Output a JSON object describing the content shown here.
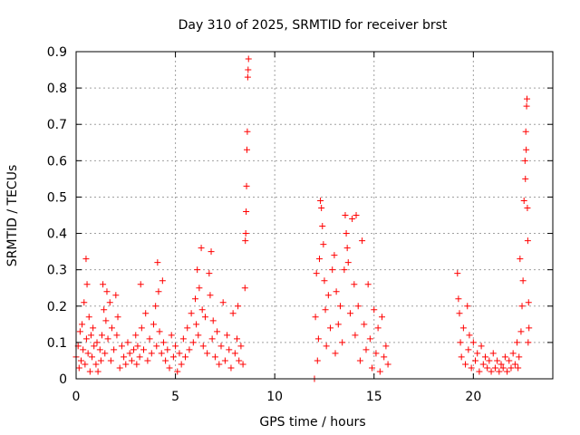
{
  "chart_data": {
    "type": "scatter",
    "title": "Day 310 of 2025, SRMTID for receiver brst",
    "xlabel": "GPS time / hours",
    "ylabel": "SRMTID / TECUs",
    "xlim": [
      0,
      24
    ],
    "ylim": [
      0,
      0.9
    ],
    "xticks": [
      "0",
      "5",
      "10",
      "15",
      "20"
    ],
    "yticks": [
      "0",
      "0.1",
      "0.2",
      "0.3",
      "0.4",
      "0.5",
      "0.6",
      "0.7",
      "0.8",
      "0.9"
    ],
    "grid": true,
    "marker": "+",
    "color": "#ff0000",
    "series": [
      {
        "name": "SRMTID",
        "points": [
          [
            0.0,
            0.06
          ],
          [
            0.1,
            0.09
          ],
          [
            0.15,
            0.03
          ],
          [
            0.2,
            0.13
          ],
          [
            0.25,
            0.05
          ],
          [
            0.3,
            0.15
          ],
          [
            0.35,
            0.08
          ],
          [
            0.4,
            0.21
          ],
          [
            0.45,
            0.04
          ],
          [
            0.5,
            0.33
          ],
          [
            0.52,
            0.11
          ],
          [
            0.55,
            0.26
          ],
          [
            0.6,
            0.07
          ],
          [
            0.65,
            0.17
          ],
          [
            0.7,
            0.02
          ],
          [
            0.75,
            0.12
          ],
          [
            0.8,
            0.06
          ],
          [
            0.85,
            0.14
          ],
          [
            0.9,
            0.09
          ],
          [
            1.0,
            0.04
          ],
          [
            1.05,
            0.1
          ],
          [
            1.1,
            0.02
          ],
          [
            1.2,
            0.08
          ],
          [
            1.25,
            0.05
          ],
          [
            1.3,
            0.12
          ],
          [
            1.35,
            0.26
          ],
          [
            1.4,
            0.19
          ],
          [
            1.45,
            0.07
          ],
          [
            1.5,
            0.16
          ],
          [
            1.55,
            0.24
          ],
          [
            1.6,
            0.11
          ],
          [
            1.7,
            0.21
          ],
          [
            1.75,
            0.05
          ],
          [
            1.8,
            0.14
          ],
          [
            1.9,
            0.08
          ],
          [
            2.0,
            0.23
          ],
          [
            2.05,
            0.12
          ],
          [
            2.1,
            0.17
          ],
          [
            2.2,
            0.03
          ],
          [
            2.3,
            0.09
          ],
          [
            2.4,
            0.06
          ],
          [
            2.5,
            0.04
          ],
          [
            2.6,
            0.1
          ],
          [
            2.7,
            0.07
          ],
          [
            2.8,
            0.05
          ],
          [
            2.9,
            0.08
          ],
          [
            3.0,
            0.12
          ],
          [
            3.05,
            0.04
          ],
          [
            3.1,
            0.09
          ],
          [
            3.2,
            0.06
          ],
          [
            3.25,
            0.26
          ],
          [
            3.3,
            0.14
          ],
          [
            3.4,
            0.08
          ],
          [
            3.5,
            0.18
          ],
          [
            3.6,
            0.05
          ],
          [
            3.7,
            0.11
          ],
          [
            3.8,
            0.07
          ],
          [
            3.9,
            0.15
          ],
          [
            4.0,
            0.2
          ],
          [
            4.05,
            0.09
          ],
          [
            4.1,
            0.32
          ],
          [
            4.15,
            0.24
          ],
          [
            4.2,
            0.13
          ],
          [
            4.3,
            0.07
          ],
          [
            4.35,
            0.27
          ],
          [
            4.4,
            0.1
          ],
          [
            4.5,
            0.05
          ],
          [
            4.6,
            0.08
          ],
          [
            4.7,
            0.03
          ],
          [
            4.8,
            0.12
          ],
          [
            4.9,
            0.06
          ],
          [
            5.0,
            0.09
          ],
          [
            5.1,
            0.02
          ],
          [
            5.2,
            0.07
          ],
          [
            5.3,
            0.04
          ],
          [
            5.4,
            0.11
          ],
          [
            5.5,
            0.06
          ],
          [
            5.6,
            0.14
          ],
          [
            5.7,
            0.08
          ],
          [
            5.8,
            0.18
          ],
          [
            5.9,
            0.1
          ],
          [
            6.0,
            0.22
          ],
          [
            6.05,
            0.15
          ],
          [
            6.1,
            0.3
          ],
          [
            6.15,
            0.12
          ],
          [
            6.2,
            0.25
          ],
          [
            6.3,
            0.36
          ],
          [
            6.35,
            0.19
          ],
          [
            6.4,
            0.09
          ],
          [
            6.5,
            0.17
          ],
          [
            6.6,
            0.07
          ],
          [
            6.7,
            0.29
          ],
          [
            6.75,
            0.23
          ],
          [
            6.8,
            0.35
          ],
          [
            6.85,
            0.11
          ],
          [
            6.9,
            0.16
          ],
          [
            7.0,
            0.06
          ],
          [
            7.1,
            0.13
          ],
          [
            7.2,
            0.04
          ],
          [
            7.3,
            0.09
          ],
          [
            7.4,
            0.21
          ],
          [
            7.5,
            0.05
          ],
          [
            7.6,
            0.12
          ],
          [
            7.7,
            0.08
          ],
          [
            7.8,
            0.03
          ],
          [
            7.9,
            0.18
          ],
          [
            8.0,
            0.07
          ],
          [
            8.1,
            0.11
          ],
          [
            8.15,
            0.2
          ],
          [
            8.2,
            0.05
          ],
          [
            8.3,
            0.09
          ],
          [
            8.4,
            0.04
          ],
          [
            8.5,
            0.25
          ],
          [
            8.52,
            0.38
          ],
          [
            8.54,
            0.4
          ],
          [
            8.56,
            0.46
          ],
          [
            8.58,
            0.53
          ],
          [
            8.6,
            0.63
          ],
          [
            8.62,
            0.68
          ],
          [
            8.64,
            0.83
          ],
          [
            8.66,
            0.85
          ],
          [
            8.68,
            0.88
          ],
          [
            12.0,
            0.0
          ],
          [
            12.05,
            0.17
          ],
          [
            12.1,
            0.29
          ],
          [
            12.15,
            0.05
          ],
          [
            12.2,
            0.11
          ],
          [
            12.25,
            0.33
          ],
          [
            12.3,
            0.49
          ],
          [
            12.35,
            0.47
          ],
          [
            12.4,
            0.42
          ],
          [
            12.45,
            0.37
          ],
          [
            12.5,
            0.27
          ],
          [
            12.55,
            0.19
          ],
          [
            12.6,
            0.09
          ],
          [
            12.7,
            0.23
          ],
          [
            12.8,
            0.14
          ],
          [
            12.9,
            0.3
          ],
          [
            13.0,
            0.34
          ],
          [
            13.05,
            0.07
          ],
          [
            13.1,
            0.24
          ],
          [
            13.2,
            0.15
          ],
          [
            13.3,
            0.2
          ],
          [
            13.4,
            0.1
          ],
          [
            13.5,
            0.3
          ],
          [
            13.55,
            0.45
          ],
          [
            13.6,
            0.4
          ],
          [
            13.65,
            0.36
          ],
          [
            13.7,
            0.32
          ],
          [
            13.8,
            0.18
          ],
          [
            13.9,
            0.44
          ],
          [
            14.0,
            0.26
          ],
          [
            14.05,
            0.12
          ],
          [
            14.1,
            0.45
          ],
          [
            14.2,
            0.2
          ],
          [
            14.3,
            0.05
          ],
          [
            14.4,
            0.38
          ],
          [
            14.5,
            0.15
          ],
          [
            14.6,
            0.08
          ],
          [
            14.7,
            0.26
          ],
          [
            14.8,
            0.11
          ],
          [
            14.9,
            0.03
          ],
          [
            15.0,
            0.19
          ],
          [
            15.1,
            0.07
          ],
          [
            15.2,
            0.14
          ],
          [
            15.3,
            0.02
          ],
          [
            15.4,
            0.17
          ],
          [
            15.5,
            0.06
          ],
          [
            15.6,
            0.09
          ],
          [
            15.7,
            0.04
          ],
          [
            19.2,
            0.29
          ],
          [
            19.25,
            0.22
          ],
          [
            19.3,
            0.18
          ],
          [
            19.35,
            0.1
          ],
          [
            19.4,
            0.06
          ],
          [
            19.5,
            0.14
          ],
          [
            19.6,
            0.04
          ],
          [
            19.7,
            0.2
          ],
          [
            19.75,
            0.08
          ],
          [
            19.8,
            0.12
          ],
          [
            19.9,
            0.03
          ],
          [
            20.0,
            0.1
          ],
          [
            20.1,
            0.05
          ],
          [
            20.2,
            0.07
          ],
          [
            20.3,
            0.02
          ],
          [
            20.4,
            0.09
          ],
          [
            20.5,
            0.04
          ],
          [
            20.6,
            0.06
          ],
          [
            20.7,
            0.03
          ],
          [
            20.8,
            0.05
          ],
          [
            20.9,
            0.02
          ],
          [
            21.0,
            0.07
          ],
          [
            21.1,
            0.03
          ],
          [
            21.2,
            0.05
          ],
          [
            21.3,
            0.02
          ],
          [
            21.4,
            0.04
          ],
          [
            21.5,
            0.03
          ],
          [
            21.6,
            0.06
          ],
          [
            21.7,
            0.02
          ],
          [
            21.8,
            0.05
          ],
          [
            21.9,
            0.03
          ],
          [
            22.0,
            0.07
          ],
          [
            22.1,
            0.04
          ],
          [
            22.2,
            0.1
          ],
          [
            22.25,
            0.03
          ],
          [
            22.3,
            0.06
          ],
          [
            22.35,
            0.33
          ],
          [
            22.4,
            0.13
          ],
          [
            22.45,
            0.2
          ],
          [
            22.5,
            0.27
          ],
          [
            22.55,
            0.49
          ],
          [
            22.6,
            0.6
          ],
          [
            22.62,
            0.55
          ],
          [
            22.64,
            0.68
          ],
          [
            22.66,
            0.63
          ],
          [
            22.68,
            0.75
          ],
          [
            22.7,
            0.77
          ],
          [
            22.72,
            0.47
          ],
          [
            22.74,
            0.38
          ],
          [
            22.76,
            0.1
          ],
          [
            22.78,
            0.21
          ],
          [
            22.8,
            0.14
          ]
        ]
      }
    ]
  }
}
